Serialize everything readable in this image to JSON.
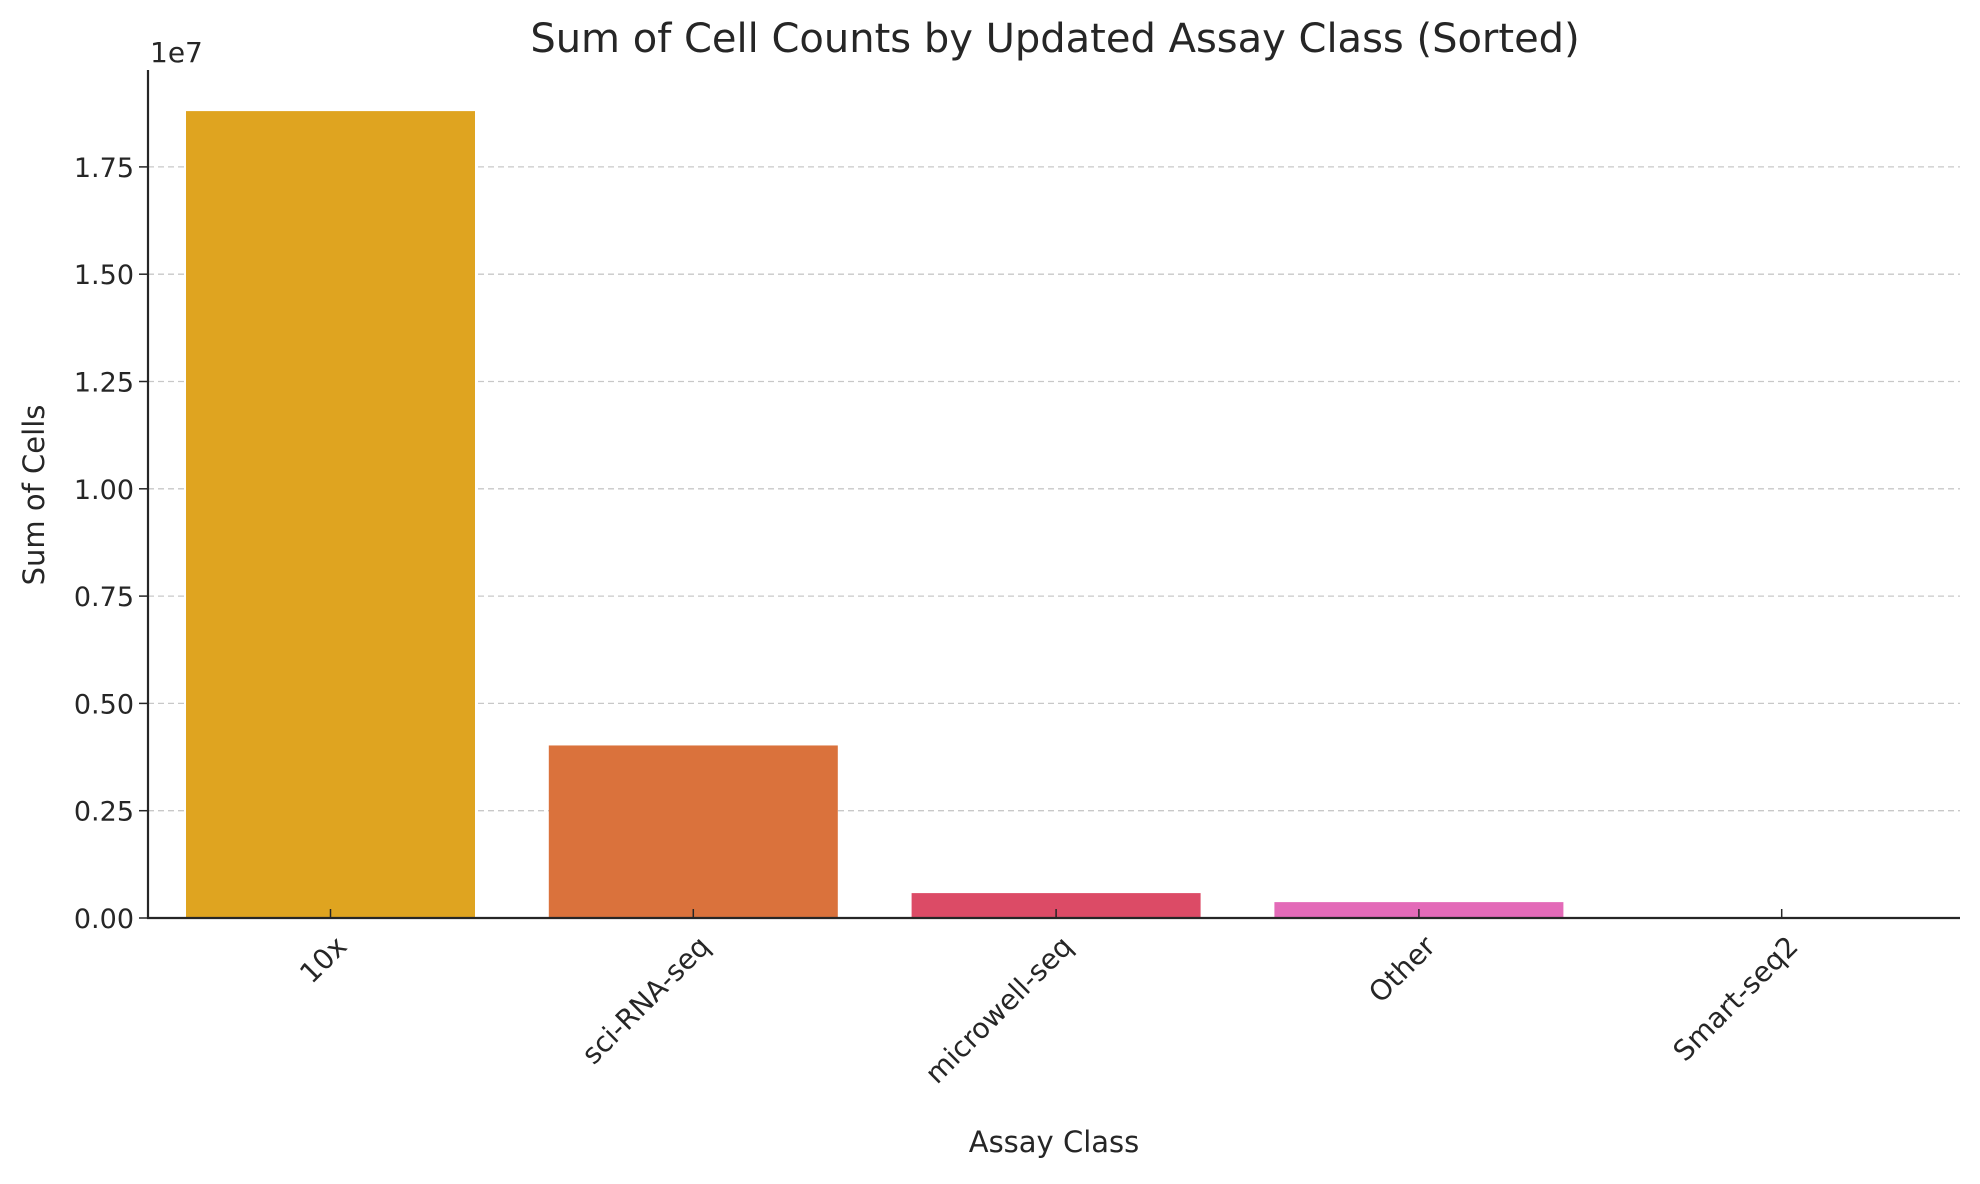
{
  "chart_data": {
    "type": "bar",
    "title": "Sum of Cell Counts by Updated Assay Class (Sorted)",
    "xlabel": "Assay Class",
    "ylabel": "Sum of Cells",
    "y_offset_label": "1e7",
    "categories": [
      "10x",
      "sci-RNA-seq",
      "microwell-seq",
      "Other",
      "Smart-seq2"
    ],
    "values": [
      18800000,
      4020000,
      580000,
      370000,
      5000
    ],
    "colors": [
      "#DFA420",
      "#DA723C",
      "#DC4B66",
      "#E36AB8",
      "#E36AB8"
    ],
    "ylim": [
      0,
      19800000
    ],
    "yticks": [
      0,
      2500000,
      5000000,
      7500000,
      10000000,
      12500000,
      15000000,
      17500000
    ],
    "ytick_labels": [
      "0.00",
      "0.25",
      "0.50",
      "0.75",
      "1.00",
      "1.25",
      "1.50",
      "1.75"
    ],
    "grid": "horizontal dashed",
    "legend": "none"
  }
}
